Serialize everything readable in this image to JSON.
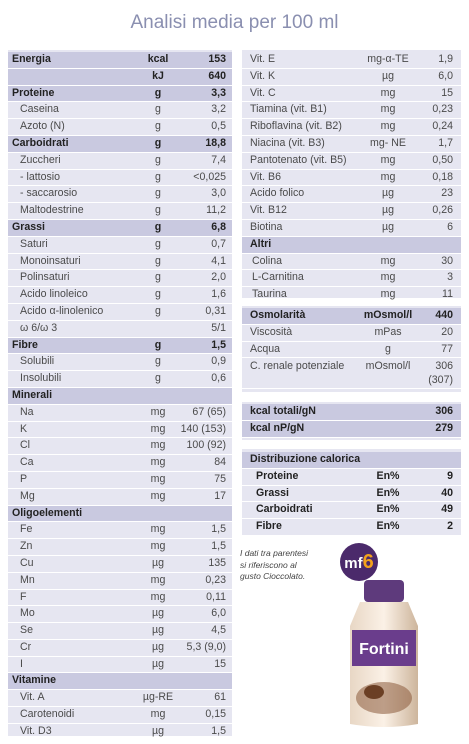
{
  "title": "Analisi media per 100 ml",
  "left": [
    {
      "name": "Energia",
      "unit": "kcal",
      "value": "153",
      "h": 1
    },
    {
      "name": "",
      "unit": "kJ",
      "value": "640",
      "h": 1
    },
    {
      "name": "Proteine",
      "unit": "g",
      "value": "3,3",
      "h": 1
    },
    {
      "name": "Caseina",
      "unit": "g",
      "value": "3,2",
      "i": 1
    },
    {
      "name": "Azoto (N)",
      "unit": "g",
      "value": "0,5",
      "i": 1
    },
    {
      "name": "Carboidrati",
      "unit": "g",
      "value": "18,8",
      "h": 1
    },
    {
      "name": "Zuccheri",
      "unit": "g",
      "value": "7,4",
      "i": 1
    },
    {
      "name": "- lattosio",
      "unit": "g",
      "value": "<0,025",
      "i": 1
    },
    {
      "name": "- saccarosio",
      "unit": "g",
      "value": "3,0",
      "i": 1
    },
    {
      "name": "Maltodestrine",
      "unit": "g",
      "value": "11,2",
      "i": 1
    },
    {
      "name": "Grassi",
      "unit": "g",
      "value": "6,8",
      "h": 1
    },
    {
      "name": "Saturi",
      "unit": "g",
      "value": "0,7",
      "i": 1
    },
    {
      "name": "Monoinsaturi",
      "unit": "g",
      "value": "4,1",
      "i": 1
    },
    {
      "name": "Polinsaturi",
      "unit": "g",
      "value": "2,0",
      "i": 1
    },
    {
      "name": "Acido linoleico",
      "unit": "g",
      "value": "1,6",
      "i": 1
    },
    {
      "name": "Acido α-linolenico",
      "unit": "g",
      "value": "0,31",
      "i": 1
    },
    {
      "name": "ω 6/ω 3",
      "unit": "",
      "value": "5/1",
      "i": 1
    },
    {
      "name": "Fibre",
      "unit": "g",
      "value": "1,5",
      "h": 1
    },
    {
      "name": "Solubili",
      "unit": "g",
      "value": "0,9",
      "i": 1
    },
    {
      "name": "Insolubili",
      "unit": "g",
      "value": "0,6",
      "i": 1
    },
    {
      "name": "Minerali",
      "unit": "",
      "value": "",
      "h": 1
    },
    {
      "name": "Na",
      "unit": "mg",
      "value": "67 (65)",
      "i": 1
    },
    {
      "name": "K",
      "unit": "mg",
      "value": "140 (153)",
      "i": 1
    },
    {
      "name": "Cl",
      "unit": "mg",
      "value": "100 (92)",
      "i": 1
    },
    {
      "name": "Ca",
      "unit": "mg",
      "value": "84",
      "i": 1
    },
    {
      "name": "P",
      "unit": "mg",
      "value": "75",
      "i": 1
    },
    {
      "name": "Mg",
      "unit": "mg",
      "value": "17",
      "i": 1
    },
    {
      "name": "Oligoelementi",
      "unit": "",
      "value": "",
      "h": 1
    },
    {
      "name": "Fe",
      "unit": "mg",
      "value": "1,5",
      "i": 1
    },
    {
      "name": "Zn",
      "unit": "mg",
      "value": "1,5",
      "i": 1
    },
    {
      "name": "Cu",
      "unit": "µg",
      "value": "135",
      "i": 1
    },
    {
      "name": "Mn",
      "unit": "mg",
      "value": "0,23",
      "i": 1
    },
    {
      "name": "F",
      "unit": "mg",
      "value": "0,11",
      "i": 1
    },
    {
      "name": "Mo",
      "unit": "µg",
      "value": "6,0",
      "i": 1
    },
    {
      "name": "Se",
      "unit": "µg",
      "value": "4,5",
      "i": 1
    },
    {
      "name": "Cr",
      "unit": "µg",
      "value": "5,3 (9,0)",
      "i": 1
    },
    {
      "name": "I",
      "unit": "µg",
      "value": "15",
      "i": 1
    },
    {
      "name": "Vitamine",
      "unit": "",
      "value": "",
      "h": 1
    },
    {
      "name": "Vit. A",
      "unit": "µg-RE",
      "value": "61",
      "i": 1
    },
    {
      "name": "Carotenoidi",
      "unit": "mg",
      "value": "0,15",
      "i": 1
    },
    {
      "name": "Vit. D3",
      "unit": "µg",
      "value": "1,5",
      "i": 1
    }
  ],
  "right": [
    {
      "name": "Vit. E",
      "unit": "mg-α-TE",
      "value": "1,9"
    },
    {
      "name": "Vit. K",
      "unit": "µg",
      "value": "6,0"
    },
    {
      "name": "Vit. C",
      "unit": "mg",
      "value": "15"
    },
    {
      "name": "Tiamina (vit. B1)",
      "unit": "mg",
      "value": "0,23"
    },
    {
      "name": "Riboflavina (vit. B2)",
      "unit": "mg",
      "value": "0,24"
    },
    {
      "name": "Niacina (vit. B3)",
      "unit": "mg- NE",
      "value": "1,7"
    },
    {
      "name": "Pantotenato (vit. B5)",
      "unit": "mg",
      "value": "0,50"
    },
    {
      "name": "Vit. B6",
      "unit": "mg",
      "value": "0,18"
    },
    {
      "name": "Acido folico",
      "unit": "µg",
      "value": "23"
    },
    {
      "name": "Vit. B12",
      "unit": "µg",
      "value": "0,26"
    },
    {
      "name": "Biotina",
      "unit": "µg",
      "value": "6"
    },
    {
      "name": "Altri",
      "unit": "",
      "value": "",
      "h": 1
    },
    {
      "name": "Colina",
      "unit": "mg",
      "value": "30",
      "i": 1
    },
    {
      "name": "L-Carnitina",
      "unit": "mg",
      "value": "3",
      "i": 1
    },
    {
      "name": "Taurina",
      "unit": "mg",
      "value": "11",
      "i": 1
    }
  ],
  "osmo": [
    {
      "name": "Osmolarità",
      "unit": "mOsmol/l",
      "value": "440",
      "h": 1
    },
    {
      "name": "Viscosità",
      "unit": "mPas",
      "value": "20"
    },
    {
      "name": "Acqua",
      "unit": "g",
      "value": "77"
    },
    {
      "name": "C. renale potenziale",
      "unit": "mOsmol/l",
      "value": "306",
      "value2": "(307)",
      "tall": 1
    }
  ],
  "ratios": [
    {
      "name": "kcal totali/gN",
      "value": "306"
    },
    {
      "name": "kcal nP/gN",
      "value": "279"
    }
  ],
  "distribution": {
    "title": "Distribuzione calorica",
    "rows": [
      {
        "name": "Proteine",
        "unit": "En%",
        "value": "9"
      },
      {
        "name": "Grassi",
        "unit": "En%",
        "value": "40"
      },
      {
        "name": "Carboidrati",
        "unit": "En%",
        "value": "49"
      },
      {
        "name": "Fibre",
        "unit": "En%",
        "value": "2"
      }
    ]
  },
  "note_lines": [
    "I dati tra parentesi",
    "si riferiscono al",
    "gusto Cioccolato."
  ],
  "badge": {
    "prefix": "mf",
    "number": "6"
  },
  "bottle": {
    "brand": "Fortini"
  }
}
